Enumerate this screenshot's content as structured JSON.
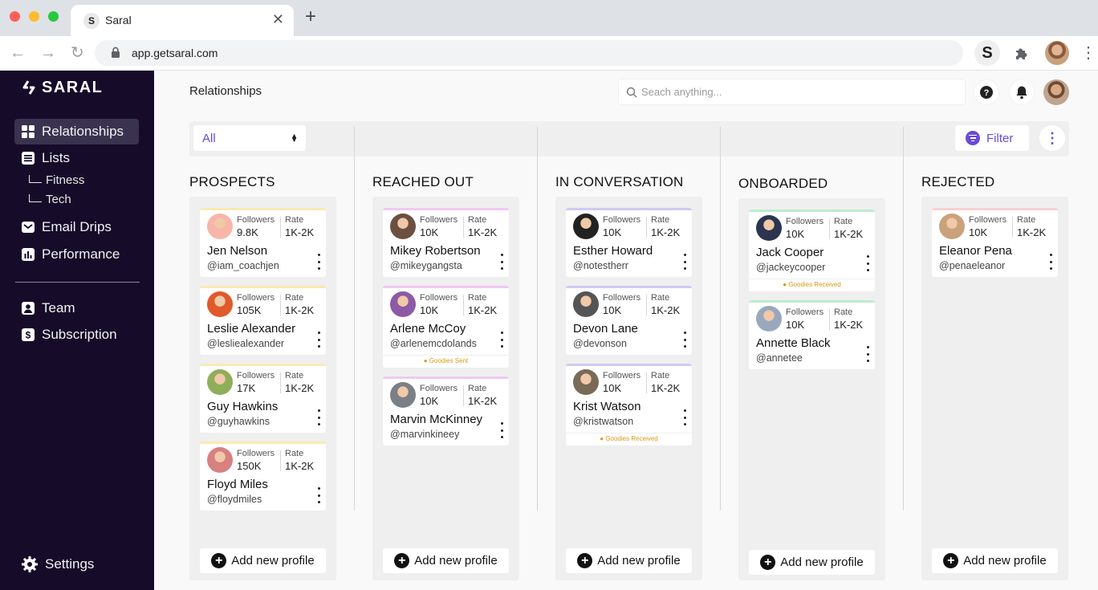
{
  "browser": {
    "tab_title": "Saral",
    "tab_favicon": "S",
    "url": "app.getsaral.com",
    "extension_label": "S"
  },
  "sidebar": {
    "logo": "SARAL",
    "items": [
      {
        "label": "Relationships",
        "icon": "grid-icon",
        "active": true
      },
      {
        "label": "Lists",
        "icon": "list-icon"
      },
      {
        "label": "Email Drips",
        "icon": "mail-icon"
      },
      {
        "label": "Performance",
        "icon": "chart-icon"
      }
    ],
    "sub_items": [
      "Fitness",
      "Tech"
    ],
    "items2": [
      {
        "label": "Team",
        "icon": "person-icon"
      },
      {
        "label": "Subscription",
        "icon": "dollar-icon"
      }
    ],
    "settings": "Settings"
  },
  "header": {
    "title": "Relationships",
    "search_placeholder": "Seach anything..."
  },
  "toolbar": {
    "select_value": "All",
    "filter_label": "Filter"
  },
  "colors": {
    "accent": "#6a4bd8",
    "sidebar_bg": "#160b29",
    "prospects": "#fbeab0",
    "reached_out": "#f1c8f4",
    "in_conversation": "#cfcaf3",
    "onboarded": "#bdeccd",
    "rejected": "#f9cfd2",
    "goodies": "#d79a14"
  },
  "columns": [
    {
      "title": "PROSPECTS",
      "add_label": "Add new profile",
      "cards": [
        {
          "name": "Jen Nelson",
          "handle": "@iam_coachjen",
          "followers_label": "Followers",
          "followers": "9.8K",
          "rate_label": "Rate",
          "rate": "1K-2K"
        },
        {
          "name": "Leslie Alexander",
          "handle": "@lesliealexander",
          "followers_label": "Followers",
          "followers": "105K",
          "rate_label": "Rate",
          "rate": "1K-2K"
        },
        {
          "name": "Guy Hawkins",
          "handle": "@guyhawkins",
          "followers_label": "Followers",
          "followers": "17K",
          "rate_label": "Rate",
          "rate": "1K-2K"
        },
        {
          "name": "Floyd Miles",
          "handle": "@floydmiles",
          "followers_label": "Followers",
          "followers": "150K",
          "rate_label": "Rate",
          "rate": "1K-2K"
        }
      ]
    },
    {
      "title": "REACHED OUT",
      "add_label": "Add new profile",
      "cards": [
        {
          "name": "Mikey Robertson",
          "handle": "@mikeygangsta",
          "followers_label": "Followers",
          "followers": "10K",
          "rate_label": "Rate",
          "rate": "1K-2K"
        },
        {
          "name": "Arlene McCoy",
          "handle": "@arlenemcdolands",
          "followers_label": "Followers",
          "followers": "10K",
          "rate_label": "Rate",
          "rate": "1K-2K",
          "status": "● Goodies Sent"
        },
        {
          "name": "Marvin McKinney",
          "handle": "@marvinkineey",
          "followers_label": "Followers",
          "followers": "10K",
          "rate_label": "Rate",
          "rate": "1K-2K"
        }
      ]
    },
    {
      "title": "IN CONVERSATION",
      "add_label": "Add new profile",
      "cards": [
        {
          "name": "Esther Howard",
          "handle": "@notestherr",
          "followers_label": "Followers",
          "followers": "10K",
          "rate_label": "Rate",
          "rate": "1K-2K"
        },
        {
          "name": "Devon Lane",
          "handle": "@devonson",
          "followers_label": "Followers",
          "followers": "10K",
          "rate_label": "Rate",
          "rate": "1K-2K"
        },
        {
          "name": "Krist Watson",
          "handle": "@kristwatson",
          "followers_label": "Followers",
          "followers": "10K",
          "rate_label": "Rate",
          "rate": "1K-2K",
          "status": "● Goodies Received"
        }
      ]
    },
    {
      "title": "ONBOARDED",
      "add_label": "Add new profile",
      "cards": [
        {
          "name": "Jack Cooper",
          "handle": "@jackeycooper",
          "followers_label": "Followers",
          "followers": "10K",
          "rate_label": "Rate",
          "rate": "1K-2K",
          "status": "● Goodies Received"
        },
        {
          "name": "Annette Black",
          "handle": "@annetee",
          "followers_label": "Followers",
          "followers": "10K",
          "rate_label": "Rate",
          "rate": "1K-2K"
        }
      ]
    },
    {
      "title": "REJECTED",
      "add_label": "Add new profile",
      "cards": [
        {
          "name": "Eleanor Pena",
          "handle": "@penaeleanor",
          "followers_label": "Followers",
          "followers": "10K",
          "rate_label": "Rate",
          "rate": "1K-2K"
        }
      ]
    }
  ]
}
